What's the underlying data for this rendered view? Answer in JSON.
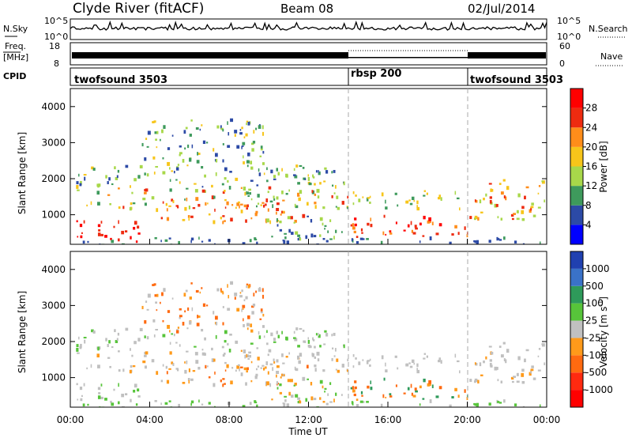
{
  "header": {
    "station": "Clyde River (fitACF)",
    "beam": "Beam 08",
    "date": "02/Jul/2014"
  },
  "nsky_panel": {
    "label": "N.Sky",
    "y_ticks_left": [
      "10^5",
      "10^0"
    ],
    "right_label": "N.Search",
    "y_ticks_right": [
      "10^5",
      "10^0"
    ]
  },
  "freq_panel": {
    "label_line1": "Freq.",
    "label_line2": "[MHz]",
    "y_ticks_left": [
      "18",
      "8"
    ],
    "right_label": "Nave",
    "y_ticks_right": [
      "60",
      "0"
    ]
  },
  "cpid_panel": {
    "label": "CPID",
    "segments": [
      {
        "name": "twofsound 3503",
        "start_hour": 0,
        "end_hour": 14
      },
      {
        "name": "rbsp 200",
        "start_hour": 14,
        "end_hour": 20
      },
      {
        "name": "twofsound 3503",
        "start_hour": 20,
        "end_hour": 24
      }
    ]
  },
  "chart_data": [
    {
      "type": "heatmap",
      "panel": "power",
      "ylabel": "Slant Range [km]",
      "xlim": [
        0,
        24
      ],
      "ylim": [
        180,
        4500
      ],
      "yticks": [
        1000,
        2000,
        3000,
        4000
      ],
      "colorbar": {
        "label": "Power [dB]",
        "ticks": [
          "4",
          "8",
          "12",
          "16",
          "20",
          "24",
          "28"
        ],
        "colors": [
          "#0000ff",
          "#2c4aa6",
          "#3e9a5c",
          "#a8d84a",
          "#f7c51a",
          "#ff8d1a",
          "#ee2b10",
          "#ff0000"
        ]
      }
    },
    {
      "type": "heatmap",
      "panel": "velocity",
      "ylabel": "Slant Range [km]",
      "xlabel": "Time UT",
      "xlim": [
        0,
        24
      ],
      "ylim": [
        180,
        4500
      ],
      "xtick_labels": [
        "00:00",
        "04:00",
        "08:00",
        "12:00",
        "16:00",
        "20:00",
        "00:00"
      ],
      "yticks": [
        1000,
        2000,
        3000,
        4000
      ],
      "colorbar": {
        "label": "Velocity [m s-1]",
        "ticks": [
          "1000",
          "500",
          "100",
          "25",
          "-25",
          "-100",
          "-500",
          "-1000"
        ],
        "colors": [
          "#2040b0",
          "#3a72c8",
          "#2e9a5a",
          "#57c43a",
          "#c0c0c0",
          "#ff9a1a",
          "#ff6a10",
          "#ff2a10",
          "#ff0000"
        ]
      }
    }
  ]
}
